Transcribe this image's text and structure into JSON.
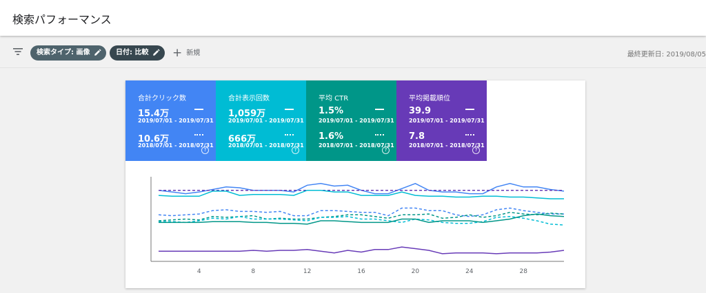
{
  "header": {
    "title": "検索パフォーマンス"
  },
  "filters": {
    "chip1_label": "検索タイプ: 画像",
    "chip2_label": "日付: 比較",
    "new_label": "新規",
    "last_updated": "最終更新日: 2019/08/05"
  },
  "metrics": [
    {
      "label": "合計クリック数",
      "value_current": "15.4万",
      "range_current": "2019/07/01 - 2019/07/31",
      "value_previous": "10.6万",
      "range_previous": "2018/07/01 - 2018/07/31",
      "color": "#4285f4"
    },
    {
      "label": "合計表示回数",
      "value_current": "1,059万",
      "range_current": "2019/07/01 - 2019/07/31",
      "value_previous": "666万",
      "range_previous": "2018/07/01 - 2018/07/31",
      "color": "#00bcd4"
    },
    {
      "label": "平均 CTR",
      "value_current": "1.5%",
      "range_current": "2019/07/01 - 2019/07/31",
      "value_previous": "1.6%",
      "range_previous": "2018/07/01 - 2018/07/31",
      "color": "#009688"
    },
    {
      "label": "平均掲載順位",
      "value_current": "39.9",
      "range_current": "2019/07/01 - 2019/07/31",
      "value_previous": "7.8",
      "range_previous": "2018/07/01 - 2018/07/31",
      "color": "#673ab7"
    }
  ],
  "chart_data": {
    "type": "line",
    "x": [
      1,
      2,
      3,
      4,
      5,
      6,
      7,
      8,
      9,
      10,
      11,
      12,
      13,
      14,
      15,
      16,
      17,
      18,
      19,
      20,
      21,
      22,
      23,
      24,
      25,
      26,
      27,
      28,
      29,
      30,
      31
    ],
    "xticks": [
      4,
      8,
      12,
      16,
      20,
      24,
      28
    ],
    "ylim": [
      0,
      100
    ],
    "grid": false,
    "series": [
      {
        "color": "#4285f4",
        "style": "solid",
        "values": [
          84,
          82,
          80,
          82,
          85,
          88,
          87,
          84,
          84,
          84,
          82,
          90,
          92,
          89,
          90,
          84,
          80,
          80,
          86,
          92,
          84,
          82,
          82,
          80,
          80,
          88,
          92,
          88,
          88,
          85,
          83
        ]
      },
      {
        "color": "#673ab7",
        "style": "dashed",
        "values": [
          84,
          84,
          84,
          84,
          84,
          84,
          84,
          84,
          84,
          84,
          84,
          84,
          84,
          84,
          84,
          84,
          84,
          84,
          84,
          84,
          84,
          84,
          84,
          84,
          84,
          84,
          84,
          84,
          84,
          84,
          84
        ]
      },
      {
        "color": "#00bcd4",
        "style": "solid",
        "values": [
          78,
          77,
          77,
          77,
          83,
          83,
          78,
          79,
          79,
          79,
          78,
          84,
          84,
          82,
          82,
          78,
          78,
          78,
          82,
          78,
          77,
          77,
          76,
          76,
          77,
          77,
          76,
          76,
          75,
          74,
          74
        ]
      },
      {
        "color": "#4285f4",
        "style": "dashed",
        "values": [
          55,
          54,
          55,
          56,
          60,
          61,
          59,
          59,
          58,
          59,
          54,
          54,
          60,
          60,
          59,
          58,
          58,
          54,
          63,
          63,
          60,
          60,
          55,
          53,
          55,
          61,
          63,
          60,
          58,
          56,
          56
        ]
      },
      {
        "color": "#009688",
        "style": "dashed",
        "values": [
          48,
          49,
          50,
          49,
          53,
          52,
          53,
          54,
          50,
          51,
          50,
          50,
          52,
          53,
          55,
          55,
          53,
          51,
          55,
          55,
          56,
          51,
          52,
          55,
          52,
          54,
          58,
          56,
          55,
          57,
          56
        ]
      },
      {
        "color": "#00bcd4",
        "style": "dashed",
        "values": [
          47,
          47,
          46,
          48,
          51,
          50,
          53,
          50,
          50,
          50,
          49,
          48,
          52,
          52,
          53,
          50,
          50,
          48,
          46,
          50,
          49,
          46,
          45,
          45,
          47,
          52,
          53,
          51,
          48,
          44,
          43
        ]
      },
      {
        "color": "#009688",
        "style": "solid",
        "values": [
          46,
          46,
          46,
          46,
          47,
          47,
          47,
          46,
          46,
          45,
          45,
          44,
          48,
          48,
          47,
          46,
          46,
          46,
          50,
          50,
          46,
          48,
          48,
          48,
          46,
          48,
          50,
          54,
          56,
          54,
          53
        ]
      },
      {
        "color": "#673ab7",
        "style": "solid",
        "values": [
          12,
          12,
          12,
          12,
          12,
          12,
          12,
          13,
          12,
          13,
          13,
          14,
          12,
          10,
          13,
          11,
          14,
          14,
          17,
          15,
          13,
          9,
          10,
          10,
          10,
          9,
          10,
          10,
          10,
          11,
          13
        ]
      }
    ]
  }
}
